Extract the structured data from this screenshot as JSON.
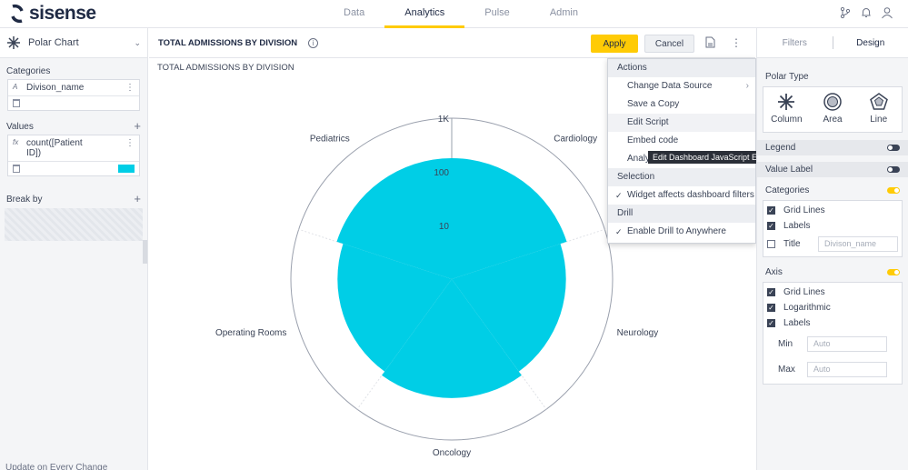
{
  "app": {
    "logo_text": "sisense"
  },
  "nav": {
    "items": [
      "Data",
      "Analytics",
      "Pulse",
      "Admin"
    ],
    "active": "Analytics"
  },
  "left": {
    "chart_type": "Polar Chart",
    "categories_label": "Categories",
    "category_field": "Divison_name",
    "category_badge": "A",
    "values_label": "Values",
    "value_field_line1": "count([Patient",
    "value_field_line2": "ID])",
    "value_badge": "fx",
    "value_color": "#00cee6",
    "breakby_label": "Break by",
    "add_symbol": "+",
    "bottom_hint": "Update on Every Change"
  },
  "main": {
    "title": "TOTAL ADMISSIONS BY DIVISION",
    "apply_label": "Apply",
    "cancel_label": "Cancel",
    "info_symbol": "i",
    "chart_title": "TOTAL ADMISSIONS BY DIVISION"
  },
  "menu": {
    "sections": [
      {
        "title": "Actions",
        "items": [
          {
            "label": "Change Data Source",
            "arrow": "›"
          },
          {
            "label": "Save a Copy"
          },
          {
            "label": "Edit Script",
            "hover": true
          },
          {
            "label": "Embed code"
          },
          {
            "label": "Analyze in a Table"
          }
        ]
      },
      {
        "title": "Selection",
        "items": [
          {
            "label": "Widget affects dashboard filters",
            "check": "✓"
          }
        ]
      },
      {
        "title": "Drill",
        "items": [
          {
            "label": "Enable Drill to Anywhere",
            "check": "✓"
          }
        ]
      }
    ],
    "tooltip": "Edit Dashboard JavaScript Extension"
  },
  "right": {
    "tabs": [
      "Filters",
      "Design"
    ],
    "active_tab": "Design",
    "polar_type_label": "Polar Type",
    "polar_types": [
      "Column",
      "Area",
      "Line"
    ],
    "legend_label": "Legend",
    "value_label_label": "Value Label",
    "categories_label": "Categories",
    "cat_grid_lines": "Grid Lines",
    "cat_labels": "Labels",
    "cat_title": "Title",
    "cat_title_value": "Divison_name",
    "axis_label": "Axis",
    "axis_grid_lines": "Grid Lines",
    "axis_logarithmic": "Logarithmic",
    "axis_labels": "Labels",
    "min_label": "Min",
    "max_label": "Max",
    "min_placeholder": "Auto",
    "max_placeholder": "Auto"
  },
  "chart_data": {
    "type": "bar",
    "subtype": "polar-column",
    "title": "TOTAL ADMISSIONS BY DIVISION",
    "categories": [
      "Cardiology",
      "Neurology",
      "Oncology",
      "Operating Rooms",
      "Pediatrics"
    ],
    "values": [
      180,
      135,
      165,
      135,
      180
    ],
    "y_scale": "log",
    "ylim": [
      1,
      1000
    ],
    "tick_labels": [
      "10",
      "100",
      "1K"
    ],
    "grid": true,
    "color": "#00cee6"
  }
}
